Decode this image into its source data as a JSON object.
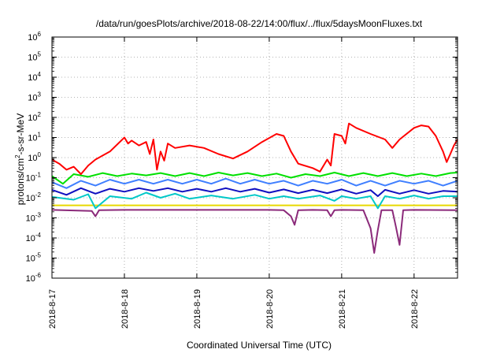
{
  "chart_data": {
    "type": "line",
    "title": "/data/run/goesPlots/archive/2018-08-22/14:00/flux/../flux/5daysMoonFluxes.txt",
    "xlabel": "Coordinated Universal Time (UTC)",
    "ylabel": {
      "base": "protons/cm",
      "sup": "2",
      "rest": "-s-sr-MeV"
    },
    "log_y": true,
    "grid": true,
    "xlim": [
      0,
      5.6
    ],
    "ylim_exponent": [
      -6,
      6
    ],
    "y_ticks": [
      {
        "exp": -6,
        "base": "10",
        "sup": "-6"
      },
      {
        "exp": -5,
        "base": "10",
        "sup": "-5"
      },
      {
        "exp": -4,
        "base": "10",
        "sup": "-4"
      },
      {
        "exp": -3,
        "base": "10",
        "sup": "-3"
      },
      {
        "exp": -2,
        "base": "10",
        "sup": "-2"
      },
      {
        "exp": -1,
        "base": "10",
        "sup": "-1"
      },
      {
        "exp": 0,
        "base": "10",
        "sup": "0"
      },
      {
        "exp": 1,
        "base": "10",
        "sup": "1"
      },
      {
        "exp": 2,
        "base": "10",
        "sup": "2"
      },
      {
        "exp": 3,
        "base": "10",
        "sup": "3"
      },
      {
        "exp": 4,
        "base": "10",
        "sup": "4"
      },
      {
        "exp": 5,
        "base": "10",
        "sup": "5"
      },
      {
        "exp": 6,
        "base": "10",
        "sup": "6"
      }
    ],
    "x_ticks": [
      {
        "x": 0,
        "label": "2018-8-17"
      },
      {
        "x": 1,
        "label": "2018-8-18"
      },
      {
        "x": 2,
        "label": "2018-8-19"
      },
      {
        "x": 3,
        "label": "2018-8-20"
      },
      {
        "x": 4,
        "label": "2018-8-21"
      },
      {
        "x": 5,
        "label": "2018-8-22"
      }
    ],
    "series": [
      {
        "color": "#e8d800",
        "points": [
          [
            0,
            0.0042
          ],
          [
            1,
            0.0042
          ],
          [
            2,
            0.0042
          ],
          [
            3,
            0.0042
          ],
          [
            4,
            0.0042
          ],
          [
            5,
            0.0042
          ],
          [
            5.6,
            0.0042
          ]
        ]
      },
      {
        "color": "#00e000",
        "points": [
          [
            0,
            0.12
          ],
          [
            0.15,
            0.05
          ],
          [
            0.3,
            0.15
          ],
          [
            0.5,
            0.11
          ],
          [
            0.7,
            0.17
          ],
          [
            0.9,
            0.12
          ],
          [
            1.1,
            0.16
          ],
          [
            1.3,
            0.13
          ],
          [
            1.5,
            0.17
          ],
          [
            1.7,
            0.12
          ],
          [
            1.9,
            0.17
          ],
          [
            2.1,
            0.12
          ],
          [
            2.3,
            0.18
          ],
          [
            2.5,
            0.13
          ],
          [
            2.7,
            0.17
          ],
          [
            2.9,
            0.12
          ],
          [
            3.1,
            0.16
          ],
          [
            3.3,
            0.1
          ],
          [
            3.5,
            0.15
          ],
          [
            3.7,
            0.12
          ],
          [
            3.9,
            0.18
          ],
          [
            4.1,
            0.12
          ],
          [
            4.3,
            0.17
          ],
          [
            4.5,
            0.12
          ],
          [
            4.7,
            0.17
          ],
          [
            4.9,
            0.12
          ],
          [
            5.1,
            0.16
          ],
          [
            5.3,
            0.12
          ],
          [
            5.5,
            0.17
          ],
          [
            5.6,
            0.18
          ]
        ]
      },
      {
        "color": "#00c8c8",
        "points": [
          [
            0,
            0.011
          ],
          [
            0.3,
            0.008
          ],
          [
            0.5,
            0.015
          ],
          [
            0.6,
            0.003
          ],
          [
            0.8,
            0.012
          ],
          [
            1.1,
            0.009
          ],
          [
            1.3,
            0.018
          ],
          [
            1.5,
            0.01
          ],
          [
            1.7,
            0.016
          ],
          [
            1.9,
            0.009
          ],
          [
            2.2,
            0.013
          ],
          [
            2.5,
            0.009
          ],
          [
            2.8,
            0.014
          ],
          [
            3.0,
            0.009
          ],
          [
            3.2,
            0.012
          ],
          [
            3.4,
            0.009
          ],
          [
            3.7,
            0.013
          ],
          [
            3.9,
            0.007
          ],
          [
            4.0,
            0.012
          ],
          [
            4.2,
            0.009
          ],
          [
            4.4,
            0.012
          ],
          [
            4.5,
            0.003
          ],
          [
            4.6,
            0.012
          ],
          [
            4.8,
            0.009
          ],
          [
            5.0,
            0.013
          ],
          [
            5.2,
            0.009
          ],
          [
            5.4,
            0.012
          ],
          [
            5.6,
            0.012
          ]
        ]
      },
      {
        "color": "#3f7fff",
        "points": [
          [
            0,
            0.06
          ],
          [
            0.2,
            0.03
          ],
          [
            0.4,
            0.07
          ],
          [
            0.6,
            0.04
          ],
          [
            0.8,
            0.08
          ],
          [
            1.0,
            0.05
          ],
          [
            1.2,
            0.08
          ],
          [
            1.4,
            0.05
          ],
          [
            1.6,
            0.08
          ],
          [
            1.8,
            0.05
          ],
          [
            2.0,
            0.08
          ],
          [
            2.2,
            0.05
          ],
          [
            2.4,
            0.09
          ],
          [
            2.6,
            0.05
          ],
          [
            2.8,
            0.08
          ],
          [
            3.0,
            0.05
          ],
          [
            3.2,
            0.07
          ],
          [
            3.4,
            0.04
          ],
          [
            3.6,
            0.07
          ],
          [
            3.8,
            0.05
          ],
          [
            4.0,
            0.08
          ],
          [
            4.2,
            0.04
          ],
          [
            4.4,
            0.07
          ],
          [
            4.6,
            0.04
          ],
          [
            4.8,
            0.07
          ],
          [
            5.0,
            0.05
          ],
          [
            5.2,
            0.07
          ],
          [
            5.4,
            0.04
          ],
          [
            5.6,
            0.07
          ]
        ]
      },
      {
        "color": "#1010c0",
        "points": [
          [
            0,
            0.025
          ],
          [
            0.2,
            0.014
          ],
          [
            0.4,
            0.03
          ],
          [
            0.6,
            0.016
          ],
          [
            0.8,
            0.028
          ],
          [
            1.0,
            0.02
          ],
          [
            1.2,
            0.03
          ],
          [
            1.4,
            0.022
          ],
          [
            1.6,
            0.03
          ],
          [
            1.8,
            0.02
          ],
          [
            2.0,
            0.028
          ],
          [
            2.2,
            0.02
          ],
          [
            2.4,
            0.03
          ],
          [
            2.6,
            0.02
          ],
          [
            2.8,
            0.028
          ],
          [
            3.0,
            0.018
          ],
          [
            3.2,
            0.026
          ],
          [
            3.4,
            0.017
          ],
          [
            3.6,
            0.025
          ],
          [
            3.8,
            0.017
          ],
          [
            4.0,
            0.026
          ],
          [
            4.2,
            0.016
          ],
          [
            4.4,
            0.024
          ],
          [
            4.5,
            0.012
          ],
          [
            4.6,
            0.025
          ],
          [
            4.8,
            0.016
          ],
          [
            5.0,
            0.024
          ],
          [
            5.2,
            0.016
          ],
          [
            5.4,
            0.022
          ],
          [
            5.6,
            0.02
          ]
        ]
      },
      {
        "color": "#8b2a7a",
        "points": [
          [
            0,
            0.0025
          ],
          [
            0.55,
            0.0022
          ],
          [
            0.6,
            0.0012
          ],
          [
            0.65,
            0.0024
          ],
          [
            1.0,
            0.0025
          ],
          [
            2.0,
            0.0025
          ],
          [
            2.5,
            0.0025
          ],
          [
            3.0,
            0.0025
          ],
          [
            3.2,
            0.0024
          ],
          [
            3.3,
            0.0012
          ],
          [
            3.35,
            0.00045
          ],
          [
            3.4,
            0.0024
          ],
          [
            3.6,
            0.0025
          ],
          [
            3.8,
            0.0024
          ],
          [
            3.85,
            0.0012
          ],
          [
            3.9,
            0.0024
          ],
          [
            4.0,
            0.0025
          ],
          [
            4.3,
            0.0024
          ],
          [
            4.4,
            0.0003
          ],
          [
            4.45,
            1.8e-05
          ],
          [
            4.5,
            0.00025
          ],
          [
            4.55,
            0.0024
          ],
          [
            4.7,
            0.0024
          ],
          [
            4.75,
            0.00035
          ],
          [
            4.8,
            4.5e-05
          ],
          [
            4.85,
            0.0024
          ],
          [
            5.0,
            0.0025
          ],
          [
            5.6,
            0.0024
          ]
        ]
      },
      {
        "color": "#ff0000",
        "points": [
          [
            0,
            0.8
          ],
          [
            0.1,
            0.5
          ],
          [
            0.2,
            0.25
          ],
          [
            0.3,
            0.35
          ],
          [
            0.4,
            0.15
          ],
          [
            0.5,
            0.4
          ],
          [
            0.6,
            0.8
          ],
          [
            0.8,
            2
          ],
          [
            1.0,
            10
          ],
          [
            1.05,
            5
          ],
          [
            1.1,
            7
          ],
          [
            1.2,
            4
          ],
          [
            1.3,
            6
          ],
          [
            1.35,
            1.5
          ],
          [
            1.4,
            8
          ],
          [
            1.45,
            0.25
          ],
          [
            1.5,
            2
          ],
          [
            1.55,
            0.7
          ],
          [
            1.6,
            5
          ],
          [
            1.7,
            3
          ],
          [
            1.9,
            4
          ],
          [
            2.1,
            3
          ],
          [
            2.3,
            1.5
          ],
          [
            2.5,
            0.9
          ],
          [
            2.7,
            2
          ],
          [
            2.9,
            6
          ],
          [
            3.1,
            15
          ],
          [
            3.2,
            12
          ],
          [
            3.3,
            2
          ],
          [
            3.4,
            0.5
          ],
          [
            3.6,
            0.3
          ],
          [
            3.7,
            0.2
          ],
          [
            3.8,
            0.8
          ],
          [
            3.85,
            0.4
          ],
          [
            3.9,
            15
          ],
          [
            4.0,
            12
          ],
          [
            4.05,
            5
          ],
          [
            4.1,
            50
          ],
          [
            4.2,
            30
          ],
          [
            4.4,
            15
          ],
          [
            4.6,
            8
          ],
          [
            4.7,
            3
          ],
          [
            4.8,
            8
          ],
          [
            5.0,
            30
          ],
          [
            5.1,
            40
          ],
          [
            5.2,
            35
          ],
          [
            5.3,
            12
          ],
          [
            5.4,
            2
          ],
          [
            5.45,
            0.6
          ],
          [
            5.5,
            1.5
          ],
          [
            5.55,
            4
          ],
          [
            5.6,
            8
          ]
        ]
      }
    ]
  }
}
